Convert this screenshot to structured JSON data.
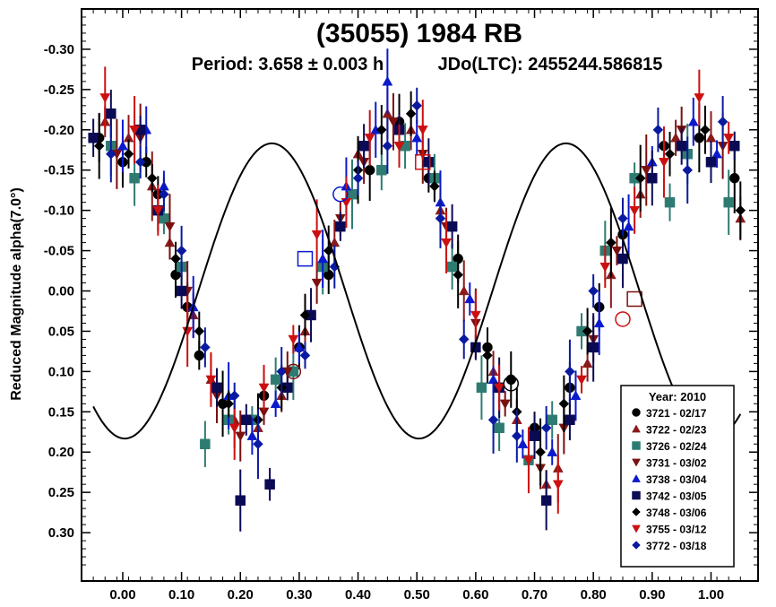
{
  "chart_data": {
    "type": "scatter",
    "title": "(35055) 1984 RB",
    "subtitle_period": "Period: 3.658 ± 0.003 h",
    "subtitle_epoch": "JDo(LTC): 2455244.586815",
    "xlabel": "",
    "ylabel": "Reduced Magnitude alpha(7.0°)",
    "xlim": [
      -0.07,
      1.08
    ],
    "ylim": [
      -0.35,
      0.36
    ],
    "y_inverted": true,
    "x_ticks": [
      "0.00",
      "0.10",
      "0.20",
      "0.30",
      "0.40",
      "0.50",
      "0.60",
      "0.70",
      "0.80",
      "0.90",
      "1.00"
    ],
    "y_ticks": [
      "-0.30",
      "-0.25",
      "-0.20",
      "-0.15",
      "-0.10",
      "-0.05",
      "0.00",
      "0.05",
      "0.10",
      "0.15",
      "0.20",
      "0.25",
      "0.30"
    ],
    "grid": false,
    "legend_position": "bottom-right",
    "legend_title": "Year: 2010",
    "fit_curve": {
      "mean": 0.0,
      "harmonics": [
        {
          "k": 2,
          "cos": 0.183,
          "sin": 0.008
        }
      ]
    },
    "series": [
      {
        "name": "3721 - 02/17",
        "marker": "circle",
        "color": "#000000",
        "points": [
          [
            -0.04,
            -0.19
          ],
          [
            0.0,
            -0.16
          ],
          [
            0.04,
            -0.16
          ],
          [
            0.06,
            -0.12
          ],
          [
            0.09,
            -0.02
          ],
          [
            0.11,
            0.02
          ],
          [
            0.13,
            0.08
          ],
          [
            0.17,
            0.14
          ],
          [
            0.24,
            0.13
          ],
          [
            0.3,
            0.07
          ],
          [
            0.35,
            -0.02
          ],
          [
            0.42,
            -0.15
          ],
          [
            0.47,
            -0.21
          ],
          [
            0.52,
            -0.14
          ],
          [
            0.57,
            -0.04
          ],
          [
            0.62,
            0.07
          ],
          [
            0.66,
            0.11
          ],
          [
            0.7,
            0.17
          ],
          [
            0.76,
            0.12
          ],
          [
            0.81,
            0.02
          ],
          [
            0.85,
            -0.07
          ],
          [
            0.92,
            -0.18
          ],
          [
            0.98,
            -0.19
          ],
          [
            1.04,
            -0.14
          ]
        ]
      },
      {
        "name": "3722 - 02/23",
        "marker": "triangle-up",
        "color": "#8b1a1a",
        "points": [
          [
            -0.03,
            -0.21
          ],
          [
            0.01,
            -0.19
          ],
          [
            0.05,
            -0.13
          ],
          [
            0.08,
            -0.06
          ],
          [
            0.12,
            0.03
          ],
          [
            0.15,
            0.11
          ],
          [
            0.19,
            0.16
          ],
          [
            0.23,
            0.17
          ],
          [
            0.27,
            0.13
          ],
          [
            0.31,
            0.05
          ],
          [
            0.36,
            -0.06
          ],
          [
            0.4,
            -0.17
          ],
          [
            0.45,
            -0.22
          ],
          [
            0.49,
            -0.2
          ],
          [
            0.54,
            -0.1
          ],
          [
            0.58,
            0.0
          ],
          [
            0.63,
            0.1
          ],
          [
            0.67,
            0.16
          ],
          [
            0.72,
            0.24
          ],
          [
            0.74,
            0.22
          ],
          [
            0.79,
            0.09
          ],
          [
            0.83,
            -0.02
          ],
          [
            0.88,
            -0.12
          ],
          [
            0.94,
            -0.19
          ],
          [
            1.0,
            -0.19
          ],
          [
            1.05,
            -0.09
          ]
        ]
      },
      {
        "name": "3726 - 02/24",
        "marker": "square",
        "color": "#2e7b72",
        "points": [
          [
            -0.02,
            -0.18
          ],
          [
            0.02,
            -0.14
          ],
          [
            0.07,
            -0.09
          ],
          [
            0.1,
            -0.03
          ],
          [
            0.14,
            0.19
          ],
          [
            0.18,
            0.16
          ],
          [
            0.22,
            0.16
          ],
          [
            0.26,
            0.11
          ],
          [
            0.29,
            0.1
          ],
          [
            0.34,
            -0.03
          ],
          [
            0.39,
            -0.12
          ],
          [
            0.44,
            -0.15
          ],
          [
            0.48,
            -0.18
          ],
          [
            0.53,
            -0.14
          ],
          [
            0.56,
            -0.03
          ],
          [
            0.61,
            0.12
          ],
          [
            0.64,
            0.17
          ],
          [
            0.69,
            0.21
          ],
          [
            0.73,
            0.16
          ],
          [
            0.78,
            0.05
          ],
          [
            0.82,
            -0.05
          ],
          [
            0.87,
            -0.14
          ],
          [
            0.93,
            -0.11
          ],
          [
            0.96,
            -0.17
          ],
          [
            1.03,
            -0.11
          ]
        ]
      },
      {
        "name": "3731 - 03/02",
        "marker": "triangle-down",
        "color": "#7a1010",
        "points": [
          [
            -0.01,
            -0.17
          ],
          [
            0.03,
            -0.19
          ],
          [
            0.08,
            -0.08
          ],
          [
            0.11,
            0.0
          ],
          [
            0.16,
            0.13
          ],
          [
            0.2,
            0.18
          ],
          [
            0.24,
            0.15
          ],
          [
            0.28,
            0.1
          ],
          [
            0.33,
            -0.01
          ],
          [
            0.37,
            -0.09
          ],
          [
            0.41,
            -0.16
          ],
          [
            0.46,
            -0.21
          ],
          [
            0.51,
            -0.17
          ],
          [
            0.55,
            -0.08
          ],
          [
            0.6,
            0.04
          ],
          [
            0.65,
            0.14
          ],
          [
            0.71,
            0.22
          ],
          [
            0.75,
            0.17
          ],
          [
            0.8,
            0.06
          ],
          [
            0.84,
            -0.05
          ],
          [
            0.89,
            -0.15
          ],
          [
            0.95,
            -0.2
          ],
          [
            1.02,
            -0.18
          ]
        ]
      },
      {
        "name": "3738 - 03/04",
        "marker": "triangle-up",
        "color": "#0a1acc",
        "points": [
          [
            0.0,
            -0.18
          ],
          [
            0.04,
            -0.2
          ],
          [
            0.07,
            -0.13
          ],
          [
            0.12,
            0.02
          ],
          [
            0.18,
            0.13
          ],
          [
            0.22,
            0.18
          ],
          [
            0.26,
            0.14
          ],
          [
            0.3,
            0.07
          ],
          [
            0.34,
            -0.04
          ],
          [
            0.38,
            -0.13
          ],
          [
            0.43,
            -0.2
          ],
          [
            0.45,
            -0.26
          ],
          [
            0.5,
            -0.19
          ],
          [
            0.54,
            -0.11
          ],
          [
            0.59,
            0.01
          ],
          [
            0.63,
            0.11
          ],
          [
            0.68,
            0.19
          ],
          [
            0.73,
            0.2
          ],
          [
            0.77,
            0.13
          ],
          [
            0.81,
            0.04
          ],
          [
            0.86,
            -0.08
          ],
          [
            0.9,
            -0.16
          ],
          [
            0.97,
            -0.21
          ],
          [
            1.01,
            -0.17
          ]
        ]
      },
      {
        "name": "3742 - 03/05",
        "marker": "square",
        "color": "#0a0a55",
        "points": [
          [
            -0.05,
            -0.19
          ],
          [
            -0.02,
            -0.22
          ],
          [
            0.03,
            -0.2
          ],
          [
            0.06,
            -0.1
          ],
          [
            0.1,
            0.0
          ],
          [
            0.16,
            0.12
          ],
          [
            0.2,
            0.26
          ],
          [
            0.21,
            0.16
          ],
          [
            0.25,
            0.24
          ],
          [
            0.28,
            0.12
          ],
          [
            0.32,
            0.03
          ],
          [
            0.37,
            -0.08
          ],
          [
            0.41,
            -0.18
          ],
          [
            0.47,
            -0.2
          ],
          [
            0.52,
            -0.16
          ],
          [
            0.56,
            -0.08
          ],
          [
            0.6,
            0.07
          ],
          [
            0.64,
            0.12
          ],
          [
            0.7,
            0.18
          ],
          [
            0.72,
            0.26
          ],
          [
            0.76,
            0.16
          ],
          [
            0.8,
            0.07
          ],
          [
            0.85,
            -0.04
          ],
          [
            0.9,
            -0.14
          ],
          [
            0.95,
            -0.18
          ],
          [
            1.0,
            -0.16
          ],
          [
            1.04,
            -0.18
          ]
        ]
      },
      {
        "name": "3748 - 03/06",
        "marker": "diamond",
        "color": "#000000",
        "points": [
          [
            -0.04,
            -0.18
          ],
          [
            0.01,
            -0.17
          ],
          [
            0.05,
            -0.14
          ],
          [
            0.09,
            -0.04
          ],
          [
            0.13,
            0.05
          ],
          [
            0.18,
            0.14
          ],
          [
            0.23,
            0.16
          ],
          [
            0.27,
            0.12
          ],
          [
            0.31,
            0.03
          ],
          [
            0.35,
            -0.05
          ],
          [
            0.4,
            -0.15
          ],
          [
            0.44,
            -0.2
          ],
          [
            0.49,
            -0.22
          ],
          [
            0.53,
            -0.13
          ],
          [
            0.57,
            -0.02
          ],
          [
            0.62,
            0.08
          ],
          [
            0.67,
            0.15
          ],
          [
            0.71,
            0.2
          ],
          [
            0.75,
            0.14
          ],
          [
            0.79,
            0.05
          ],
          [
            0.83,
            -0.06
          ],
          [
            0.88,
            -0.14
          ],
          [
            0.93,
            -0.17
          ],
          [
            0.99,
            -0.2
          ],
          [
            1.05,
            -0.1
          ]
        ]
      },
      {
        "name": "3755 - 03/12",
        "marker": "triangle-down",
        "color": "#cc1010",
        "points": [
          [
            -0.03,
            -0.24
          ],
          [
            0.02,
            -0.2
          ],
          [
            0.06,
            -0.1
          ],
          [
            0.11,
            0.05
          ],
          [
            0.15,
            0.11
          ],
          [
            0.19,
            0.17
          ],
          [
            0.24,
            0.12
          ],
          [
            0.29,
            0.06
          ],
          [
            0.33,
            -0.07
          ],
          [
            0.38,
            -0.11
          ],
          [
            0.42,
            -0.19
          ],
          [
            0.47,
            -0.18
          ],
          [
            0.51,
            -0.2
          ],
          [
            0.55,
            -0.06
          ],
          [
            0.6,
            0.03
          ],
          [
            0.64,
            0.12
          ],
          [
            0.69,
            0.21
          ],
          [
            0.74,
            0.24
          ],
          [
            0.78,
            0.11
          ],
          [
            0.82,
            -0.03
          ],
          [
            0.87,
            -0.1
          ],
          [
            0.92,
            -0.16
          ],
          [
            0.98,
            -0.24
          ],
          [
            1.03,
            -0.19
          ]
        ]
      },
      {
        "name": "3772 - 03/18",
        "marker": "diamond",
        "color": "#0a1aa0",
        "points": [
          [
            -0.02,
            -0.17
          ],
          [
            0.03,
            -0.16
          ],
          [
            0.07,
            -0.12
          ],
          [
            0.1,
            -0.05
          ],
          [
            0.14,
            0.07
          ],
          [
            0.19,
            0.13
          ],
          [
            0.23,
            0.19
          ],
          [
            0.27,
            0.1
          ],
          [
            0.31,
            0.08
          ],
          [
            0.36,
            -0.03
          ],
          [
            0.4,
            -0.14
          ],
          [
            0.45,
            -0.18
          ],
          [
            0.5,
            -0.23
          ],
          [
            0.54,
            -0.09
          ],
          [
            0.58,
            0.06
          ],
          [
            0.63,
            0.16
          ],
          [
            0.67,
            0.18
          ],
          [
            0.72,
            0.17
          ],
          [
            0.76,
            0.1
          ],
          [
            0.8,
            0.0
          ],
          [
            0.85,
            -0.09
          ],
          [
            0.91,
            -0.2
          ],
          [
            0.96,
            -0.15
          ],
          [
            1.02,
            -0.21
          ]
        ]
      }
    ],
    "open_markers": [
      {
        "shape": "circle",
        "color": "#000000",
        "x": 0.66,
        "y": 0.115
      },
      {
        "shape": "circle",
        "color": "#7a1010",
        "x": 0.29,
        "y": 0.1
      },
      {
        "shape": "circle",
        "color": "#cc1010",
        "x": 0.85,
        "y": 0.035
      },
      {
        "shape": "square",
        "color": "#7a1010",
        "x": 0.87,
        "y": 0.01
      },
      {
        "shape": "square",
        "color": "#cc1010",
        "x": 0.51,
        "y": -0.16
      },
      {
        "shape": "square",
        "color": "#0a1acc",
        "x": 0.31,
        "y": -0.04
      },
      {
        "shape": "circle",
        "color": "#0a1acc",
        "x": 0.37,
        "y": -0.12
      }
    ]
  }
}
